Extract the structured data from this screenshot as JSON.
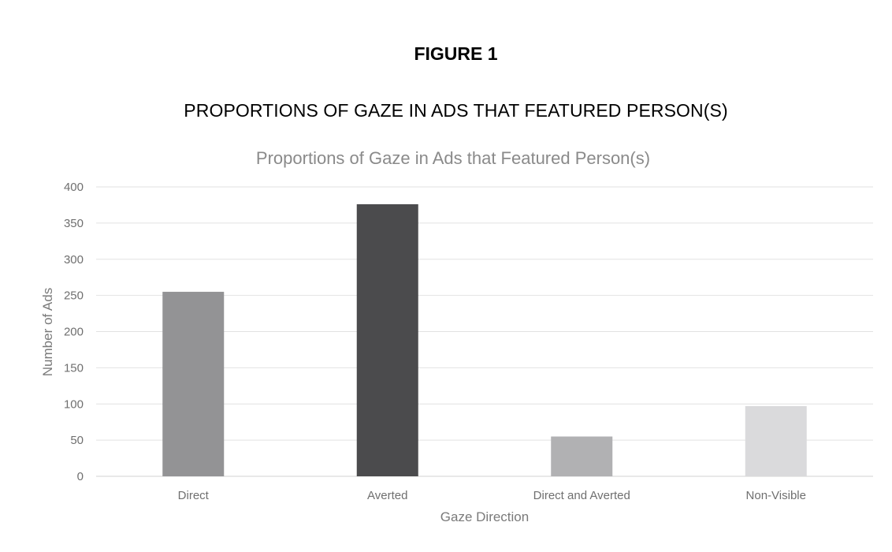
{
  "figure": {
    "label": "FIGURE 1",
    "caption": "PROPORTIONS OF GAZE IN ADS THAT FEATURED PERSON(S)"
  },
  "chart_data": {
    "type": "bar",
    "title": "Proportions of Gaze in Ads that Featured Person(s)",
    "xlabel": "Gaze Direction",
    "ylabel": "Number of Ads",
    "ylim": [
      0,
      400
    ],
    "yticks": [
      0,
      50,
      100,
      150,
      200,
      250,
      300,
      350,
      400
    ],
    "categories": [
      "Direct",
      "Averted",
      "Direct and Averted",
      "Non-Visible"
    ],
    "values": [
      255,
      376,
      55,
      97
    ],
    "colors": [
      "#939395",
      "#4b4b4d",
      "#b1b1b3",
      "#dadadc"
    ],
    "grid": true,
    "legend": "none"
  }
}
